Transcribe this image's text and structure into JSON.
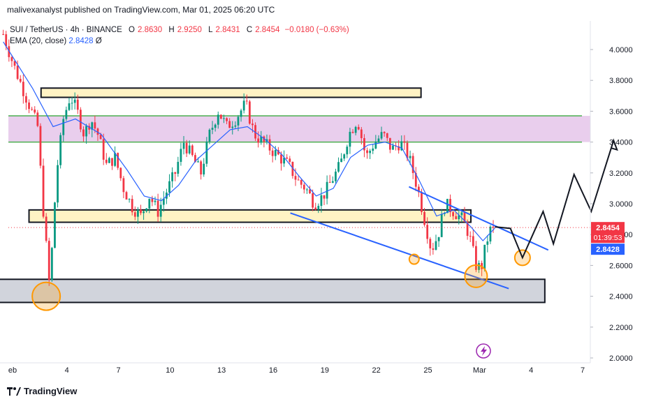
{
  "header": {
    "publisher": "malivexanalyst published on TradingView.com, Mar 01, 2025 06:20 UTC"
  },
  "legend": {
    "symbol": "SUI / TetherUS · 4h · BINANCE",
    "open_label": "O",
    "open": "2.8630",
    "high_label": "H",
    "high": "2.9250",
    "low_label": "L",
    "low": "2.8431",
    "close_label": "C",
    "close": "2.8454",
    "change": "−0.0180 (−0.63%)",
    "ema_label": "EMA (20, close)",
    "ema_value": "2.8428",
    "ema_extra": "Ø"
  },
  "price_tag": {
    "price": "2.8454",
    "countdown": "01:39:53",
    "ema": "2.8428"
  },
  "footer": {
    "brand": "TradingView"
  },
  "colors": {
    "up": "#089981",
    "down": "#f23645",
    "ema": "#2962ff",
    "resistance_zone": "#e1bee7",
    "zone_border": "#4caf50",
    "yellow_box": "#fff3c4",
    "gray_box": "#d1d4dc",
    "circle": "#ff9800",
    "channel": "#2962ff",
    "projection": "#131722"
  },
  "chart_data": {
    "type": "candlestick",
    "ylim": [
      2.0,
      4.2
    ],
    "y_ticks": [
      "4.0000",
      "3.8000",
      "3.6000",
      "3.4000",
      "3.2000",
      "3.0000",
      "2.8000",
      "2.6000",
      "2.4000",
      "2.2000",
      "2.0000"
    ],
    "x_ticks": [
      "eb",
      "4",
      "7",
      "10",
      "13",
      "16",
      "19",
      "22",
      "25",
      "Mar",
      "4",
      "7"
    ],
    "x_tick_days": [
      1,
      4,
      7,
      10,
      13,
      16,
      19,
      22,
      25,
      28,
      31,
      34
    ],
    "last_price": 2.8454,
    "ema_last": 2.8428,
    "waypoints": [
      [
        0.3,
        4.1
      ],
      [
        0.9,
        3.9
      ],
      [
        1.6,
        3.7
      ],
      [
        2.3,
        3.5
      ],
      [
        2.6,
        3.0
      ],
      [
        3.0,
        2.45
      ],
      [
        3.4,
        3.2
      ],
      [
        3.8,
        3.55
      ],
      [
        4.2,
        3.7
      ],
      [
        4.6,
        3.6
      ],
      [
        5.0,
        3.45
      ],
      [
        5.4,
        3.55
      ],
      [
        5.8,
        3.45
      ],
      [
        6.3,
        3.25
      ],
      [
        6.8,
        3.3
      ],
      [
        7.3,
        3.1
      ],
      [
        7.8,
        2.98
      ],
      [
        8.3,
        2.92
      ],
      [
        8.8,
        3.05
      ],
      [
        9.3,
        2.95
      ],
      [
        9.8,
        3.08
      ],
      [
        10.3,
        3.2
      ],
      [
        10.8,
        3.4
      ],
      [
        11.3,
        3.3
      ],
      [
        11.8,
        3.2
      ],
      [
        12.3,
        3.45
      ],
      [
        12.8,
        3.6
      ],
      [
        13.3,
        3.5
      ],
      [
        13.8,
        3.55
      ],
      [
        14.4,
        3.65
      ],
      [
        14.9,
        3.45
      ],
      [
        15.4,
        3.4
      ],
      [
        15.9,
        3.35
      ],
      [
        16.4,
        3.3
      ],
      [
        16.9,
        3.25
      ],
      [
        17.4,
        3.15
      ],
      [
        17.9,
        3.1
      ],
      [
        18.4,
        3.0
      ],
      [
        18.9,
        3.05
      ],
      [
        19.4,
        3.15
      ],
      [
        19.9,
        3.25
      ],
      [
        20.4,
        3.45
      ],
      [
        20.9,
        3.55
      ],
      [
        21.4,
        3.3
      ],
      [
        21.9,
        3.4
      ],
      [
        22.4,
        3.45
      ],
      [
        22.9,
        3.35
      ],
      [
        23.4,
        3.4
      ],
      [
        23.9,
        3.3
      ],
      [
        24.4,
        3.1
      ],
      [
        24.9,
        2.85
      ],
      [
        25.2,
        2.7
      ],
      [
        25.6,
        2.8
      ],
      [
        26.0,
        3.0
      ],
      [
        26.5,
        2.95
      ],
      [
        27.0,
        2.9
      ],
      [
        27.4,
        2.8
      ],
      [
        27.8,
        2.6
      ],
      [
        28.1,
        2.58
      ],
      [
        28.4,
        2.75
      ],
      [
        28.7,
        2.85
      ],
      [
        28.9,
        2.8454
      ]
    ],
    "ema_points": [
      [
        0.3,
        4.05
      ],
      [
        2.0,
        3.75
      ],
      [
        3.2,
        3.5
      ],
      [
        4.5,
        3.55
      ],
      [
        6.0,
        3.45
      ],
      [
        7.5,
        3.22
      ],
      [
        8.5,
        3.05
      ],
      [
        9.5,
        3.02
      ],
      [
        10.5,
        3.12
      ],
      [
        11.5,
        3.28
      ],
      [
        12.5,
        3.38
      ],
      [
        13.5,
        3.48
      ],
      [
        14.5,
        3.5
      ],
      [
        15.5,
        3.42
      ],
      [
        16.5,
        3.32
      ],
      [
        17.5,
        3.18
      ],
      [
        18.5,
        3.05
      ],
      [
        19.5,
        3.1
      ],
      [
        20.5,
        3.3
      ],
      [
        21.5,
        3.38
      ],
      [
        22.5,
        3.4
      ],
      [
        23.5,
        3.36
      ],
      [
        24.5,
        3.15
      ],
      [
        25.5,
        2.92
      ],
      [
        26.5,
        2.96
      ],
      [
        27.5,
        2.85
      ],
      [
        28.2,
        2.76
      ],
      [
        28.9,
        2.8428
      ]
    ],
    "zones": {
      "resistance": [
        3.4,
        3.57
      ],
      "upper_box": [
        3.69,
        3.75
      ],
      "mid_box": [
        2.88,
        2.96
      ],
      "support_box": [
        2.36,
        2.51
      ]
    },
    "upper_box_days": [
      2.5,
      24.6
    ],
    "mid_box_days": [
      1.8,
      27.5
    ],
    "support_box_days": [
      0.0,
      31.8
    ],
    "channel_upper": [
      [
        23.9,
        3.11
      ],
      [
        32.0,
        2.7
      ]
    ],
    "channel_lower": [
      [
        17.0,
        2.94
      ],
      [
        29.7,
        2.45
      ]
    ],
    "circles": [
      [
        2.8,
        2.4,
        20
      ],
      [
        24.2,
        2.64,
        7
      ],
      [
        27.8,
        2.53,
        16
      ],
      [
        30.5,
        2.65,
        11
      ]
    ],
    "projection": [
      [
        28.9,
        2.85
      ],
      [
        29.8,
        2.84
      ],
      [
        30.5,
        2.65
      ],
      [
        31.7,
        2.95
      ],
      [
        32.3,
        2.74
      ],
      [
        33.5,
        3.19
      ],
      [
        34.5,
        2.95
      ],
      [
        35.8,
        3.41
      ],
      [
        36.0,
        3.35
      ],
      [
        35.7,
        3.36
      ]
    ]
  }
}
